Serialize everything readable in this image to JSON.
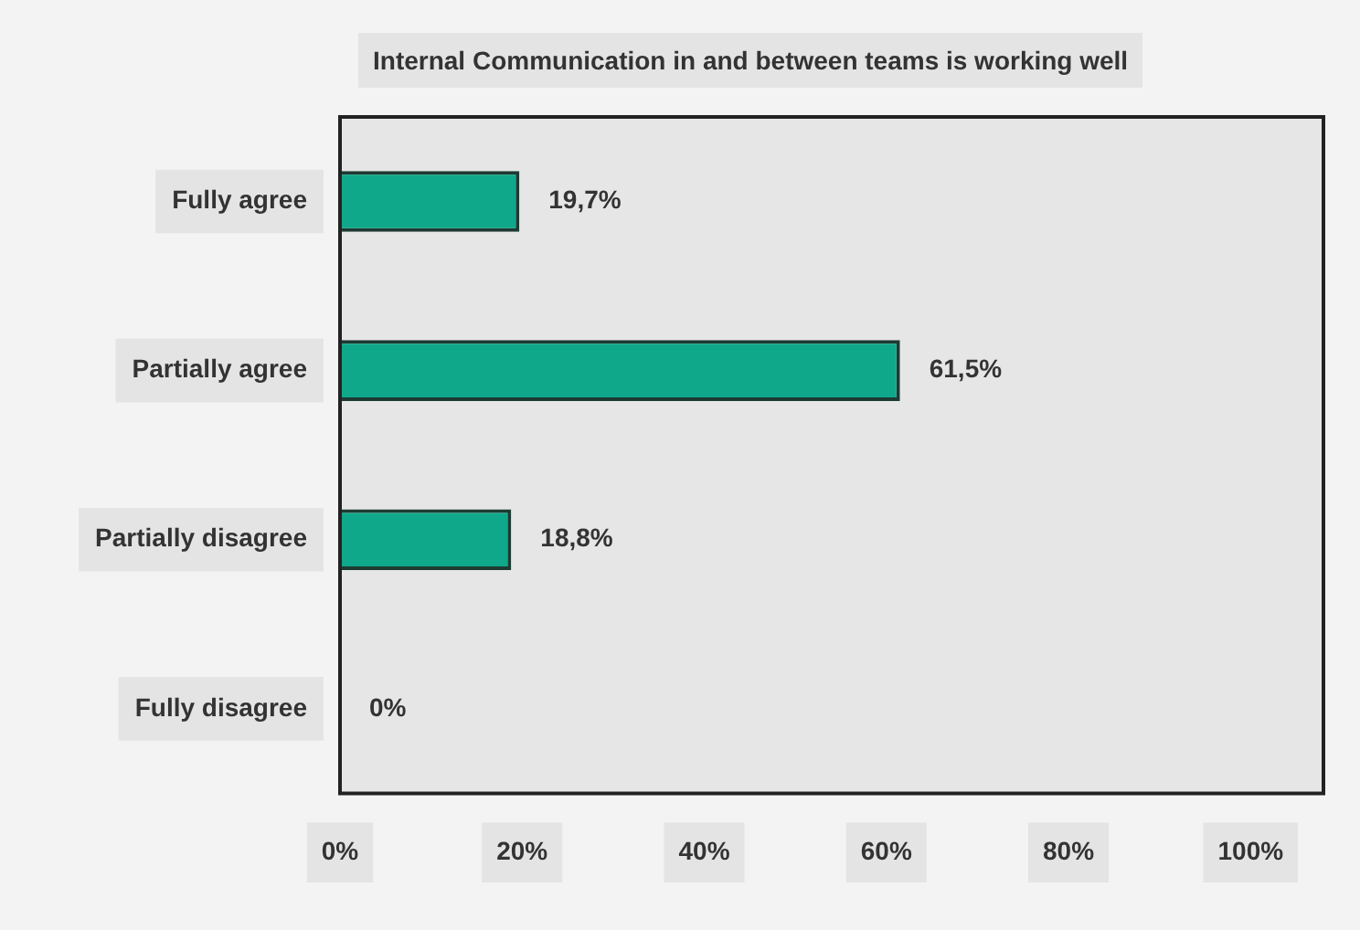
{
  "chart_data": {
    "type": "bar",
    "orientation": "horizontal",
    "title": "Internal Communication in and between teams is working well",
    "categories": [
      "Fully agree",
      "Partially agree",
      "Partially disagree",
      "Fully disagree"
    ],
    "values": [
      19.7,
      61.5,
      18.8,
      0
    ],
    "value_labels": [
      "19,7%",
      "61,5%",
      "18,8%",
      "0%"
    ],
    "color": "#0fa88a",
    "xlim": [
      0,
      108
    ],
    "xticks": [
      {
        "value": 0,
        "label": "0%"
      },
      {
        "value": 20,
        "label": "20%"
      },
      {
        "value": 40,
        "label": "40%"
      },
      {
        "value": 60,
        "label": "60%"
      },
      {
        "value": 80,
        "label": "80%"
      },
      {
        "value": 100,
        "label": "100%"
      }
    ]
  }
}
